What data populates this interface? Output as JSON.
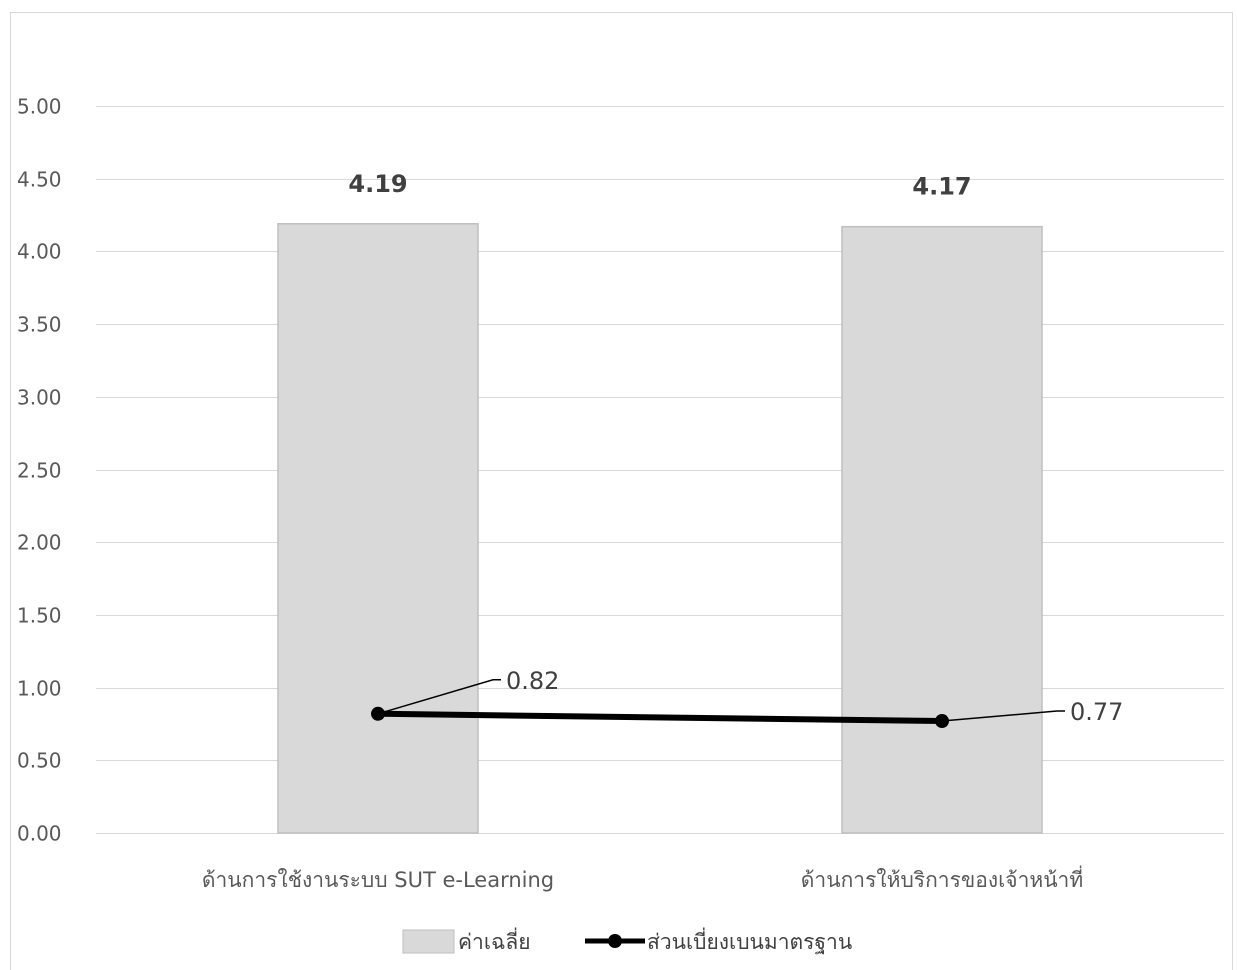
{
  "chart_data": {
    "type": "bar",
    "categories": [
      "ด้านการใช้งานระบบ SUT e-Learning",
      "ด้านการให้บริการของเจ้าหน้าที่"
    ],
    "series": [
      {
        "name": "ค่าเฉลี่ย",
        "kind": "bar",
        "values": [
          4.19,
          4.17
        ],
        "color": "#d9d9d9",
        "border": "#bfbfbf"
      },
      {
        "name": "ส่วนเบี่ยงเบนมาตรฐาน",
        "kind": "line",
        "values": [
          0.82,
          0.77
        ],
        "color": "#000000"
      }
    ],
    "bar_labels": [
      "4.19",
      "4.17"
    ],
    "line_labels": [
      "0.82",
      "0.77"
    ],
    "ylim": [
      0,
      5
    ],
    "yticks": [
      "0.00",
      "0.50",
      "1.00",
      "1.50",
      "2.00",
      "2.50",
      "3.00",
      "3.50",
      "4.00",
      "4.50",
      "5.00"
    ],
    "grid": true,
    "legend_position": "bottom",
    "colors": {
      "gridline": "#d9d9d9",
      "frame": "#d9d9d9"
    }
  }
}
